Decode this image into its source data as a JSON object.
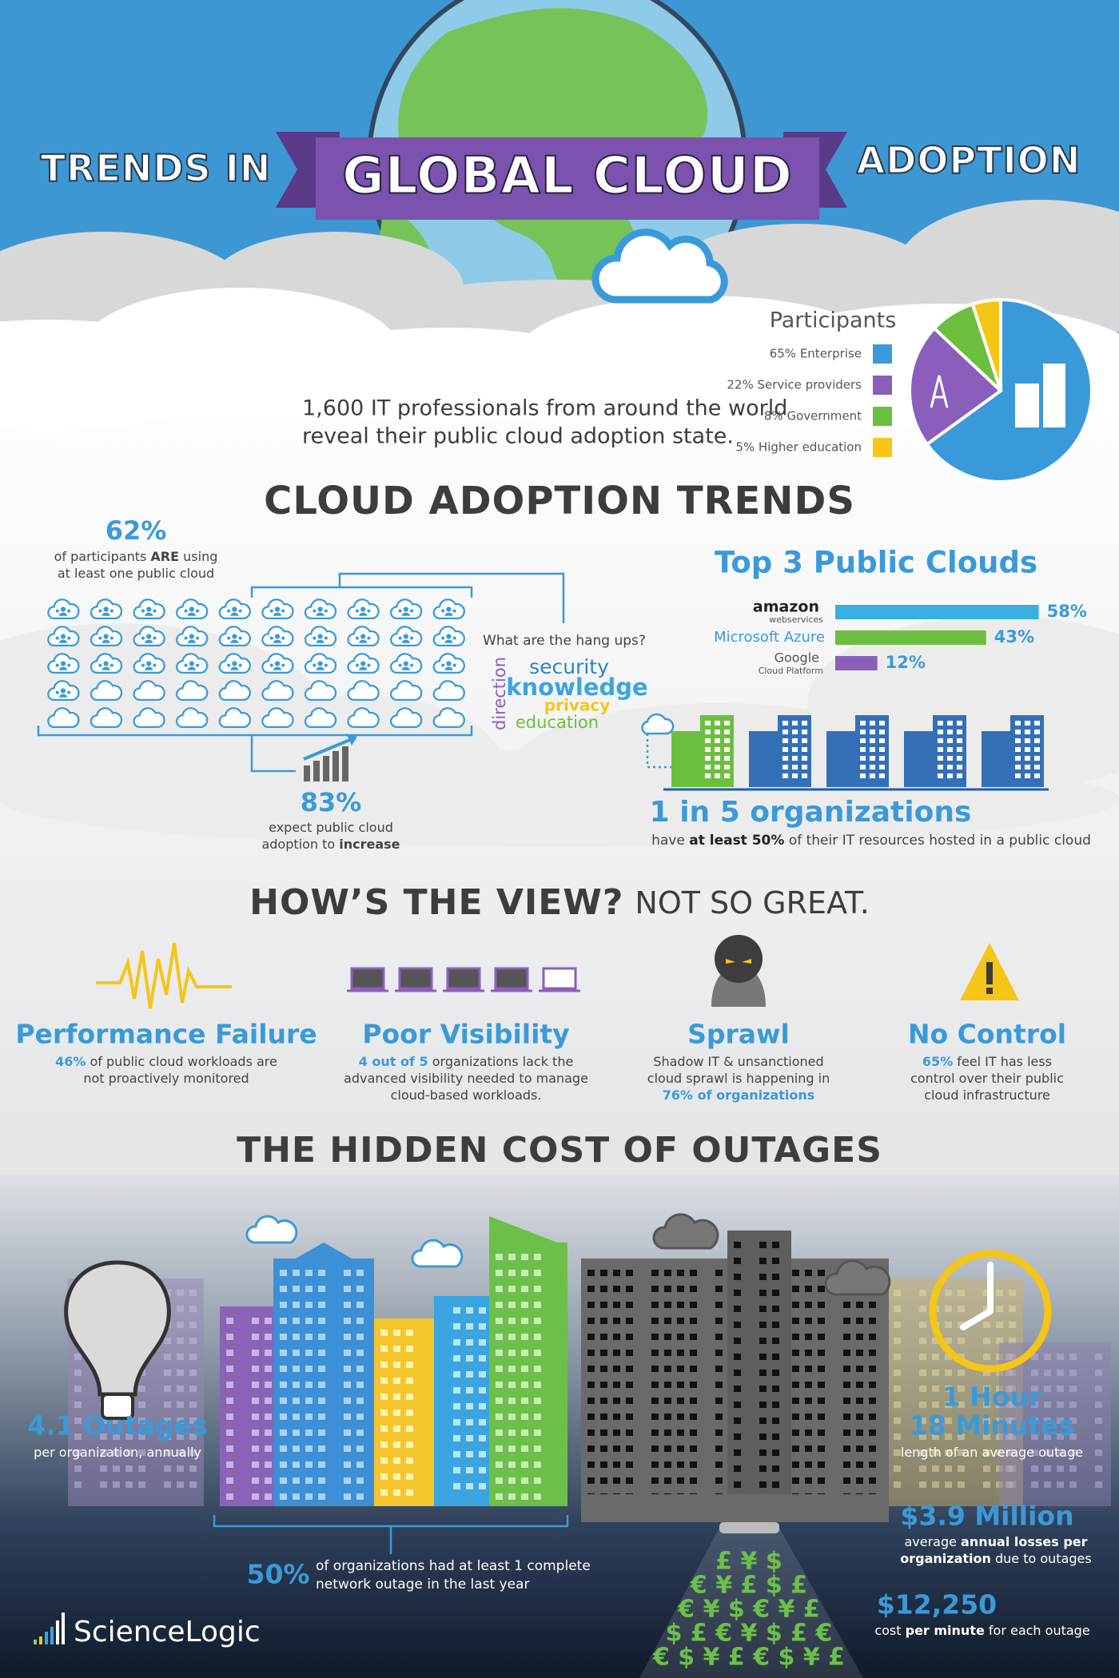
{
  "header": {
    "title_left": "TRENDS IN",
    "title_banner": "GLOBAL CLOUD",
    "title_right": "ADOPTION"
  },
  "intro": [
    "1,600 IT professionals from around the world",
    "reveal their public cloud adoption state."
  ],
  "participants": {
    "title": "Participants",
    "items": [
      {
        "label": "65% Enterprise",
        "value": 65,
        "color": "#3a9ad9"
      },
      {
        "label": "22% Service providers",
        "value": 22,
        "color": "#8a5fbb"
      },
      {
        "label": "8% Government",
        "value": 8,
        "color": "#6cbf3e"
      },
      {
        "label": "5% Higher education",
        "value": 5,
        "color": "#f5c518"
      }
    ]
  },
  "adoption": {
    "title": "CLOUD ADOPTION TRENDS",
    "using": {
      "value": 62,
      "value_label": "62%",
      "lines": [
        [
          "of participants ",
          {
            "text": "ARE",
            "bold": true
          },
          " using"
        ],
        [
          "at least one public cloud"
        ]
      ]
    },
    "increase": {
      "value": 83,
      "value_label": "83%",
      "lines": [
        [
          "expect public cloud"
        ],
        [
          "adoption to ",
          {
            "text": "increase",
            "bold": true
          }
        ]
      ]
    },
    "hang_ups": {
      "question": "What are the hang ups?",
      "words": [
        "security",
        "knowledge",
        "privacy",
        "education",
        "direction"
      ]
    },
    "top_clouds": {
      "title": "Top 3 Public Clouds",
      "items": [
        {
          "name": "amazon",
          "sub": "webservices",
          "value": 58,
          "value_label": "58%",
          "color": "#3aaee0"
        },
        {
          "name": "Microsoft Azure",
          "value": 43,
          "value_label": "43%",
          "color": "#6cbf3e"
        },
        {
          "name": "Google",
          "sub": "Cloud Platform",
          "value": 12,
          "value_label": "12%",
          "color": "#8a5fbb"
        }
      ]
    },
    "one_in_five": {
      "headline": "1 in 5 organizations",
      "lines": [
        [
          "have ",
          {
            "text": "at least 50%",
            "bold": true
          },
          " of their IT resources hosted in a public cloud"
        ]
      ]
    }
  },
  "view": {
    "title": "HOW’S THE VIEW?",
    "subtitle": "NOT SO GREAT.",
    "items": [
      {
        "title": "Performance Failure",
        "lines": [
          [
            {
              "text": "46%",
              "bold": true
            },
            " of public cloud workloads are"
          ],
          [
            "not proactively monitored"
          ]
        ]
      },
      {
        "title": "Poor Visibility",
        "lines": [
          [
            {
              "text": "4 out of 5",
              "bold": true
            },
            " organizations lack the"
          ],
          [
            "advanced visibility needed to manage"
          ],
          [
            "cloud-based workloads."
          ]
        ]
      },
      {
        "title": "Sprawl",
        "lines": [
          [
            "Shadow IT & unsanctioned"
          ],
          [
            "cloud sprawl is happening in"
          ],
          [
            {
              "text": "76% of organizations",
              "bold": true
            }
          ]
        ]
      },
      {
        "title": "No Control",
        "lines": [
          [
            {
              "text": "65%",
              "bold": true
            },
            " feel IT has less"
          ],
          [
            "control over their public"
          ],
          [
            "cloud infrastructure"
          ]
        ]
      }
    ]
  },
  "outages": {
    "title": "THE HIDDEN COST OF OUTAGES",
    "count": {
      "headline": "4.1 Outages",
      "lines": [
        [
          "per organization, annually"
        ]
      ]
    },
    "duration": {
      "headline": [
        "1 Hour",
        "18 Minutes"
      ],
      "lines": [
        [
          "length of an average outage"
        ]
      ]
    },
    "losses": {
      "headline": "$3.9 Million",
      "lines": [
        [
          "average ",
          {
            "text": "annual losses per",
            "bold": true
          }
        ],
        [
          {
            "text": "organization",
            "bold": true
          },
          " due to outages"
        ]
      ]
    },
    "per_minute": {
      "headline": "$12,250",
      "lines": [
        [
          "cost ",
          {
            "text": "per minute",
            "bold": true
          },
          " for each outage"
        ]
      ]
    },
    "complete": {
      "headline": "50%",
      "lines": [
        [
          "of organizations had at least 1 complete"
        ],
        [
          "network outage in the last year"
        ]
      ]
    },
    "currency": [
      "£ ¥ $",
      "€ ¥ £ $ £",
      "€ ¥ $ € ¥ £",
      "$ £ € ¥ $ £ €",
      "€ $ ¥ £ € $ ¥ £"
    ]
  },
  "footer": {
    "logo": "ScienceLogic"
  }
}
